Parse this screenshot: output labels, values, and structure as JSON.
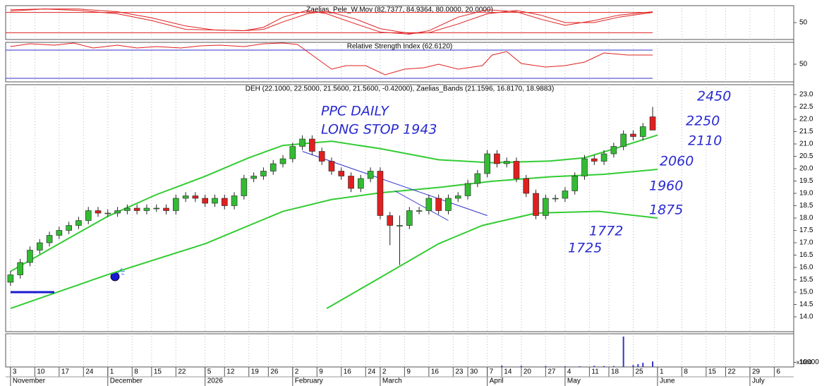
{
  "x_axis": {
    "xlim": [
      -1,
      161
    ],
    "grid": true,
    "xticks": [
      {
        "value": 0,
        "label": "3"
      },
      {
        "value": 5,
        "label": "10"
      },
      {
        "value": 10,
        "label": "17"
      },
      {
        "value": 15,
        "label": "24"
      },
      {
        "value": 20,
        "label": "1"
      },
      {
        "value": 25,
        "label": "8"
      },
      {
        "value": 29,
        "label": "15"
      },
      {
        "value": 34,
        "label": "22"
      },
      {
        "value": 40,
        "label": "5"
      },
      {
        "value": 44,
        "label": "12"
      },
      {
        "value": 49,
        "label": "19"
      },
      {
        "value": 53,
        "label": "26"
      },
      {
        "value": 58,
        "label": "2"
      },
      {
        "value": 63,
        "label": "9"
      },
      {
        "value": 68,
        "label": "16"
      },
      {
        "value": 73,
        "label": "24"
      },
      {
        "value": 76,
        "label": "2"
      },
      {
        "value": 81,
        "label": "9"
      },
      {
        "value": 86,
        "label": "16"
      },
      {
        "value": 91,
        "label": "23"
      },
      {
        "value": 94,
        "label": "30"
      },
      {
        "value": 98,
        "label": "7"
      },
      {
        "value": 101,
        "label": "14"
      },
      {
        "value": 105,
        "label": "20"
      },
      {
        "value": 110,
        "label": "27"
      },
      {
        "value": 114,
        "label": "4"
      },
      {
        "value": 119,
        "label": "11"
      },
      {
        "value": 123,
        "label": "18"
      },
      {
        "value": 128,
        "label": "25"
      },
      {
        "value": 133,
        "label": "1"
      },
      {
        "value": 138,
        "label": "8"
      },
      {
        "value": 143,
        "label": "15"
      },
      {
        "value": 147,
        "label": "22"
      },
      {
        "value": 152,
        "label": "29"
      },
      {
        "value": 157,
        "label": "6"
      }
    ],
    "month_ticks": [
      {
        "value": 0,
        "label": "November"
      },
      {
        "value": 20,
        "label": "December"
      },
      {
        "value": 40,
        "label": "2026"
      },
      {
        "value": 58,
        "label": "February"
      },
      {
        "value": 76,
        "label": "March"
      },
      {
        "value": 98,
        "label": "April"
      },
      {
        "value": 114,
        "label": "May"
      },
      {
        "value": 133,
        "label": "June"
      },
      {
        "value": 152,
        "label": "July"
      }
    ]
  },
  "chart_data": [
    {
      "type": "line",
      "title": "Zaelias_Pele_W.Mov (82.7377, 84.9364, 80.0000, 20.0000)",
      "ylim": [
        0,
        100
      ],
      "yticks": [
        50
      ],
      "levels": [
        80,
        20
      ],
      "level_color": "#e02020",
      "series": [
        {
          "color": "#e02020",
          "x": [
            0,
            7,
            14,
            22,
            29,
            36,
            42,
            48,
            52,
            56,
            61,
            65,
            71,
            76,
            82,
            86,
            92,
            98,
            104,
            109,
            114,
            120,
            125,
            132
          ],
          "values": [
            88,
            90,
            86,
            76,
            56,
            30,
            28,
            26,
            36,
            66,
            86,
            76,
            46,
            22,
            16,
            26,
            66,
            88,
            82,
            60,
            42,
            56,
            72,
            82
          ]
        },
        {
          "color": "#e02020",
          "x": [
            0,
            7,
            14,
            22,
            29,
            36,
            42,
            48,
            52,
            56,
            61,
            65,
            71,
            76,
            82,
            86,
            92,
            98,
            104,
            109,
            114,
            120,
            125,
            132
          ],
          "values": [
            84,
            90,
            90,
            82,
            64,
            40,
            28,
            26,
            30,
            52,
            76,
            84,
            60,
            32,
            18,
            20,
            46,
            76,
            86,
            72,
            50,
            50,
            66,
            80
          ]
        }
      ]
    },
    {
      "type": "line",
      "title": "Relative Strength Index (62.6120)",
      "ylim": [
        25,
        81
      ],
      "yticks": [
        50
      ],
      "levels": [
        70,
        30
      ],
      "level_color": "#3333cc",
      "series": [
        {
          "color": "#e02020",
          "x": [
            0,
            4,
            9,
            13,
            17,
            22,
            26,
            30,
            35,
            39,
            43,
            48,
            52,
            56,
            59,
            62,
            66,
            69,
            73,
            77,
            81,
            85,
            88,
            92,
            97,
            99,
            102,
            105,
            110,
            114,
            118,
            122,
            127,
            132
          ],
          "values": [
            75,
            79,
            77,
            80,
            73,
            77,
            73,
            75,
            73,
            76,
            77,
            75,
            79,
            80,
            78,
            63,
            43,
            48,
            48,
            35,
            43,
            45,
            50,
            43,
            48,
            63,
            68,
            51,
            46,
            48,
            53,
            66,
            63,
            63
          ]
        }
      ]
    },
    {
      "type": "candlestick",
      "title": "DEH (22.1000, 22.5000, 21.5600, 21.5600, -0.42000), Zaelias_Bands (21.1596, 16.8170, 18.9883)",
      "ylim": [
        13.4,
        23.4
      ],
      "yticks": [
        {
          "value": 14,
          "label": "14.0"
        },
        {
          "value": 14.5,
          "label": "14.5"
        },
        {
          "value": 15,
          "label": "15.0"
        },
        {
          "value": 15.5,
          "label": "15.5"
        },
        {
          "value": 16,
          "label": "16.0"
        },
        {
          "value": 16.5,
          "label": "16.5"
        },
        {
          "value": 17,
          "label": "17.0"
        },
        {
          "value": 17.5,
          "label": "17.5"
        },
        {
          "value": 18,
          "label": "18.0"
        },
        {
          "value": 18.5,
          "label": "18.5"
        },
        {
          "value": 19,
          "label": "19.0"
        },
        {
          "value": 19.5,
          "label": "19.5"
        },
        {
          "value": 20,
          "label": "20.0"
        },
        {
          "value": 20.5,
          "label": "20.5"
        },
        {
          "value": 21,
          "label": "21.0"
        },
        {
          "value": 21.5,
          "label": "21.5"
        },
        {
          "value": 22,
          "label": "22.0"
        },
        {
          "value": 22.5,
          "label": "22.5"
        },
        {
          "value": 23,
          "label": "23.0"
        }
      ],
      "up_color": "#33bb33",
      "down_color": "#e02020",
      "x": [
        0,
        2,
        4,
        6,
        8,
        10,
        12,
        14,
        16,
        18,
        20,
        22,
        24,
        26,
        28,
        30,
        32,
        34,
        36,
        38,
        40,
        42,
        44,
        46,
        48,
        50,
        52,
        54,
        56,
        58,
        60,
        62,
        64,
        66,
        68,
        70,
        72,
        74,
        76,
        78,
        80,
        82,
        84,
        86,
        88,
        90,
        92,
        94,
        96,
        98,
        100,
        102,
        104,
        106,
        108,
        110,
        112,
        114,
        116,
        118,
        120,
        122,
        124,
        126,
        128,
        130,
        132
      ],
      "open": [
        15.4,
        15.7,
        16.2,
        16.7,
        17.0,
        17.3,
        17.5,
        17.7,
        17.9,
        18.3,
        18.2,
        18.2,
        18.3,
        18.4,
        18.3,
        18.4,
        18.4,
        18.3,
        18.8,
        18.9,
        18.8,
        18.6,
        18.8,
        18.5,
        18.9,
        19.6,
        19.7,
        19.9,
        20.2,
        20.4,
        20.9,
        21.2,
        20.7,
        20.3,
        19.9,
        19.7,
        19.2,
        19.6,
        19.9,
        18.1,
        17.7,
        17.7,
        18.3,
        18.3,
        18.8,
        18.3,
        18.8,
        18.9,
        19.4,
        19.8,
        20.6,
        20.2,
        20.3,
        19.6,
        19.0,
        18.1,
        18.8,
        18.8,
        19.1,
        19.7,
        20.4,
        20.3,
        20.6,
        20.9,
        21.4,
        21.3,
        22.1
      ],
      "high": [
        15.85,
        16.35,
        16.85,
        17.15,
        17.45,
        17.65,
        17.85,
        18.05,
        18.45,
        18.45,
        18.35,
        18.45,
        18.55,
        18.55,
        18.55,
        18.55,
        18.55,
        18.95,
        19.05,
        19.05,
        18.95,
        18.95,
        18.95,
        19.05,
        19.75,
        19.85,
        20.05,
        20.35,
        20.55,
        21.05,
        21.35,
        21.35,
        20.85,
        20.45,
        20.05,
        19.85,
        19.75,
        20.05,
        20.05,
        18.25,
        18.1,
        18.45,
        18.45,
        18.95,
        18.95,
        18.95,
        19.05,
        19.55,
        19.95,
        20.75,
        20.75,
        20.45,
        20.45,
        19.75,
        19.15,
        18.95,
        18.95,
        19.25,
        19.85,
        20.55,
        20.55,
        20.75,
        21.05,
        21.55,
        21.55,
        21.85,
        22.5
      ],
      "low": [
        15.25,
        15.55,
        16.05,
        16.55,
        16.85,
        17.15,
        17.35,
        17.55,
        17.75,
        18.05,
        18.05,
        18.05,
        18.15,
        18.15,
        18.15,
        18.25,
        18.15,
        18.15,
        18.65,
        18.65,
        18.45,
        18.45,
        18.35,
        18.35,
        18.75,
        19.45,
        19.55,
        19.75,
        20.05,
        20.25,
        20.75,
        20.55,
        20.15,
        19.75,
        19.55,
        19.05,
        19.05,
        19.45,
        17.95,
        16.9,
        16.1,
        17.55,
        18.15,
        18.15,
        18.15,
        18.15,
        18.65,
        18.75,
        19.25,
        19.65,
        20.05,
        20.05,
        19.45,
        18.85,
        17.95,
        17.95,
        18.65,
        18.65,
        18.95,
        19.55,
        20.15,
        20.15,
        20.45,
        20.75,
        21.15,
        21.15,
        21.56
      ],
      "close": [
        15.7,
        16.2,
        16.7,
        17.0,
        17.3,
        17.5,
        17.7,
        17.9,
        18.3,
        18.2,
        18.2,
        18.3,
        18.4,
        18.3,
        18.4,
        18.4,
        18.3,
        18.8,
        18.9,
        18.8,
        18.6,
        18.8,
        18.5,
        18.9,
        19.6,
        19.7,
        19.9,
        20.2,
        20.4,
        20.9,
        21.2,
        20.7,
        20.3,
        19.9,
        19.7,
        19.2,
        19.6,
        19.9,
        18.1,
        17.7,
        17.7,
        18.3,
        18.3,
        18.8,
        18.3,
        18.8,
        18.9,
        19.4,
        19.8,
        20.6,
        20.2,
        20.3,
        19.6,
        19.0,
        18.1,
        18.8,
        18.8,
        19.1,
        19.7,
        20.4,
        20.3,
        20.6,
        20.9,
        21.4,
        21.3,
        21.7,
        21.56
      ],
      "series": [
        {
          "color": "#33cc33",
          "x": [
            0,
            10,
            20,
            30,
            40,
            49,
            56,
            66,
            76,
            88,
            99,
            111,
            118,
            125,
            133
          ],
          "values": [
            15.84,
            16.96,
            18.07,
            18.95,
            19.69,
            20.44,
            20.94,
            21.11,
            20.81,
            20.36,
            20.24,
            20.31,
            20.44,
            20.86,
            21.36
          ]
        },
        {
          "color": "#33cc33",
          "x": [
            0,
            20,
            40,
            56,
            66,
            76,
            88,
            99,
            111,
            122,
            133
          ],
          "values": [
            14.34,
            15.71,
            16.96,
            18.27,
            18.75,
            19.02,
            19.24,
            19.49,
            19.67,
            19.77,
            19.97
          ]
        },
        {
          "color": "#33cc33",
          "x": [
            65,
            76,
            88,
            97,
            108,
            121,
            133
          ],
          "values": [
            14.34,
            15.59,
            16.96,
            17.7,
            18.2,
            18.27,
            18.0
          ]
        }
      ],
      "lines": [
        {
          "color": "#3333cc",
          "x": [
            60,
            98
          ],
          "values": [
            20.7,
            18.1
          ]
        },
        {
          "color": "#3333cc",
          "x": [
            79,
            90
          ],
          "values": [
            19.1,
            17.9
          ]
        },
        {
          "color": "#1a1ad0",
          "x": [
            0,
            9
          ],
          "values": [
            15.0,
            15.0
          ]
        }
      ],
      "annotations": [
        "PPC DAILY",
        "LONG STOP 1943",
        "2450",
        "2250",
        "2110",
        "2060",
        "1960",
        "1875",
        "1772",
        "1725"
      ]
    },
    {
      "type": "bar",
      "ylim": [
        0,
        72000
      ],
      "yticks": [
        10000
      ],
      "unit_label": "x1000",
      "color": "#3333cc",
      "x": [
        101,
        105,
        110,
        114,
        117,
        120,
        122,
        124,
        126,
        128,
        129,
        130,
        132
      ],
      "values": [
        3000,
        2500,
        2000,
        1500,
        1500,
        2500,
        2000,
        2000,
        66000,
        4000,
        6000,
        9000,
        12000
      ]
    }
  ]
}
